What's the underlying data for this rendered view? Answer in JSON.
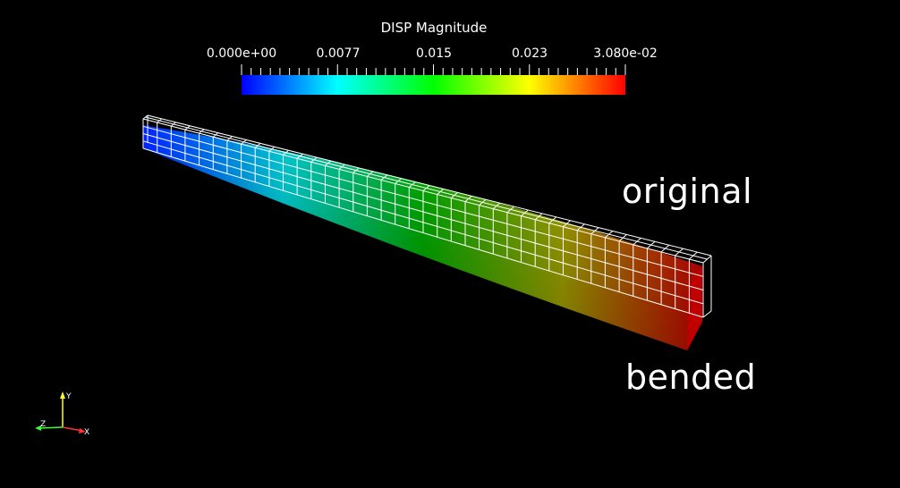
{
  "legend": {
    "title": "DISP Magnitude",
    "ticks": [
      "0.000e+00",
      "0.0077",
      "0.015",
      "0.023",
      "3.080e-02"
    ],
    "range": [
      0.0,
      0.0308
    ],
    "colormap": [
      "#0000ff",
      "#00ffff",
      "#00ff00",
      "#ffff00",
      "#ff0000"
    ]
  },
  "labels": {
    "original": "original",
    "bended": "bended"
  },
  "orientation_axes": {
    "y": "Y",
    "z": "Z",
    "x": "X"
  },
  "colors": {
    "background": "#000000",
    "wireframe": "#ffffff",
    "x_axis": "#ff3333",
    "y_axis": "#ffff33",
    "z_axis": "#33ff33"
  }
}
